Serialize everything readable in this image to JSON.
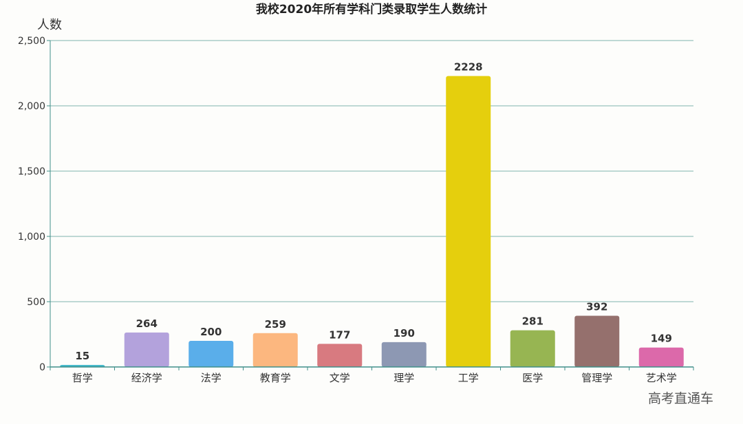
{
  "chart_data": {
    "type": "bar",
    "title": "我校2020年所有学科门类录取学生人数统计",
    "xlabel": "",
    "ylabel": "人数",
    "ylim": [
      0,
      2500
    ],
    "yticks": [
      0,
      500,
      1000,
      1500,
      2000,
      2500
    ],
    "ytick_labels": [
      "0",
      "500",
      "1,000",
      "1,500",
      "2,000",
      "2,500"
    ],
    "grid": true,
    "categories": [
      "哲学",
      "经济学",
      "法学",
      "教育学",
      "文学",
      "理学",
      "工学",
      "医学",
      "管理学",
      "艺术学"
    ],
    "values": [
      15,
      264,
      200,
      259,
      177,
      190,
      2228,
      281,
      392,
      149
    ],
    "colors": [
      "#3bb5c8",
      "#b3a2dc",
      "#5aaeea",
      "#fcb77f",
      "#d87a80",
      "#8d98b3",
      "#e5cf0d",
      "#97b552",
      "#95706d",
      "#dc69aa"
    ],
    "axis_color": "#3f8f8a",
    "grid_color": "#7fb3ae"
  },
  "watermark": "高考直通车"
}
